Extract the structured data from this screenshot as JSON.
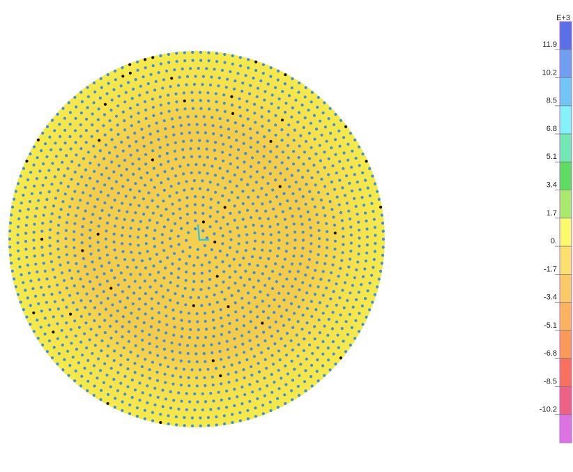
{
  "legend": {
    "exponent": "E+3",
    "labels": [
      "11.9",
      "10.2",
      "8.5",
      "6.8",
      "5.1",
      "3.4",
      "1.7",
      "0.",
      "-1.7",
      "-3.4",
      "-5.1",
      "-6.8",
      "-8.5",
      "-10.2"
    ],
    "colors": [
      "#5b6fe6",
      "#6f9ff0",
      "#72c6f6",
      "#84f2f8",
      "#72e8b4",
      "#5fdc62",
      "#a9ea6e",
      "#fafa6e",
      "#fbe06f",
      "#fbca68",
      "#fbb35f",
      "#fb9a58",
      "#f8705e",
      "#ee6086",
      "#dd72e2"
    ]
  }
}
